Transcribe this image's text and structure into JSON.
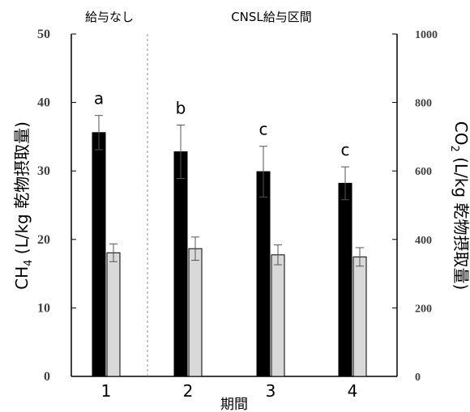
{
  "chart_data": {
    "type": "bar",
    "categories": [
      "1",
      "2",
      "3",
      "4"
    ],
    "xlabel": "期間",
    "ylabel_left": {
      "main": "CH",
      "sub": "4",
      "rest": " (L/kg 乾物摂取量)"
    },
    "ylabel_right": {
      "main": "CO",
      "sub": "2",
      "rest": " (L/kg 乾物摂取量)"
    },
    "left_axis": {
      "min": 0,
      "max": 50,
      "ticks": [
        "0",
        "10",
        "20",
        "30",
        "40",
        "50"
      ]
    },
    "right_axis": {
      "min": 0,
      "max": 1000,
      "ticks": [
        "0",
        "200",
        "400",
        "600",
        "800",
        "1000"
      ]
    },
    "period_labels": [
      "給与なし",
      "CNSL給与区間"
    ],
    "significance_letters": [
      "a",
      "b",
      "c",
      "c"
    ],
    "series": [
      {
        "axis": "left",
        "color": "#000000",
        "values": [
          35.6,
          32.8,
          29.9,
          28.2
        ],
        "errors": [
          2.5,
          3.9,
          3.7,
          2.4
        ]
      },
      {
        "axis": "right",
        "color": "#d9d9d9",
        "values": [
          361,
          373,
          355,
          349
        ],
        "errors": [
          26,
          34,
          29,
          27
        ]
      }
    ]
  }
}
